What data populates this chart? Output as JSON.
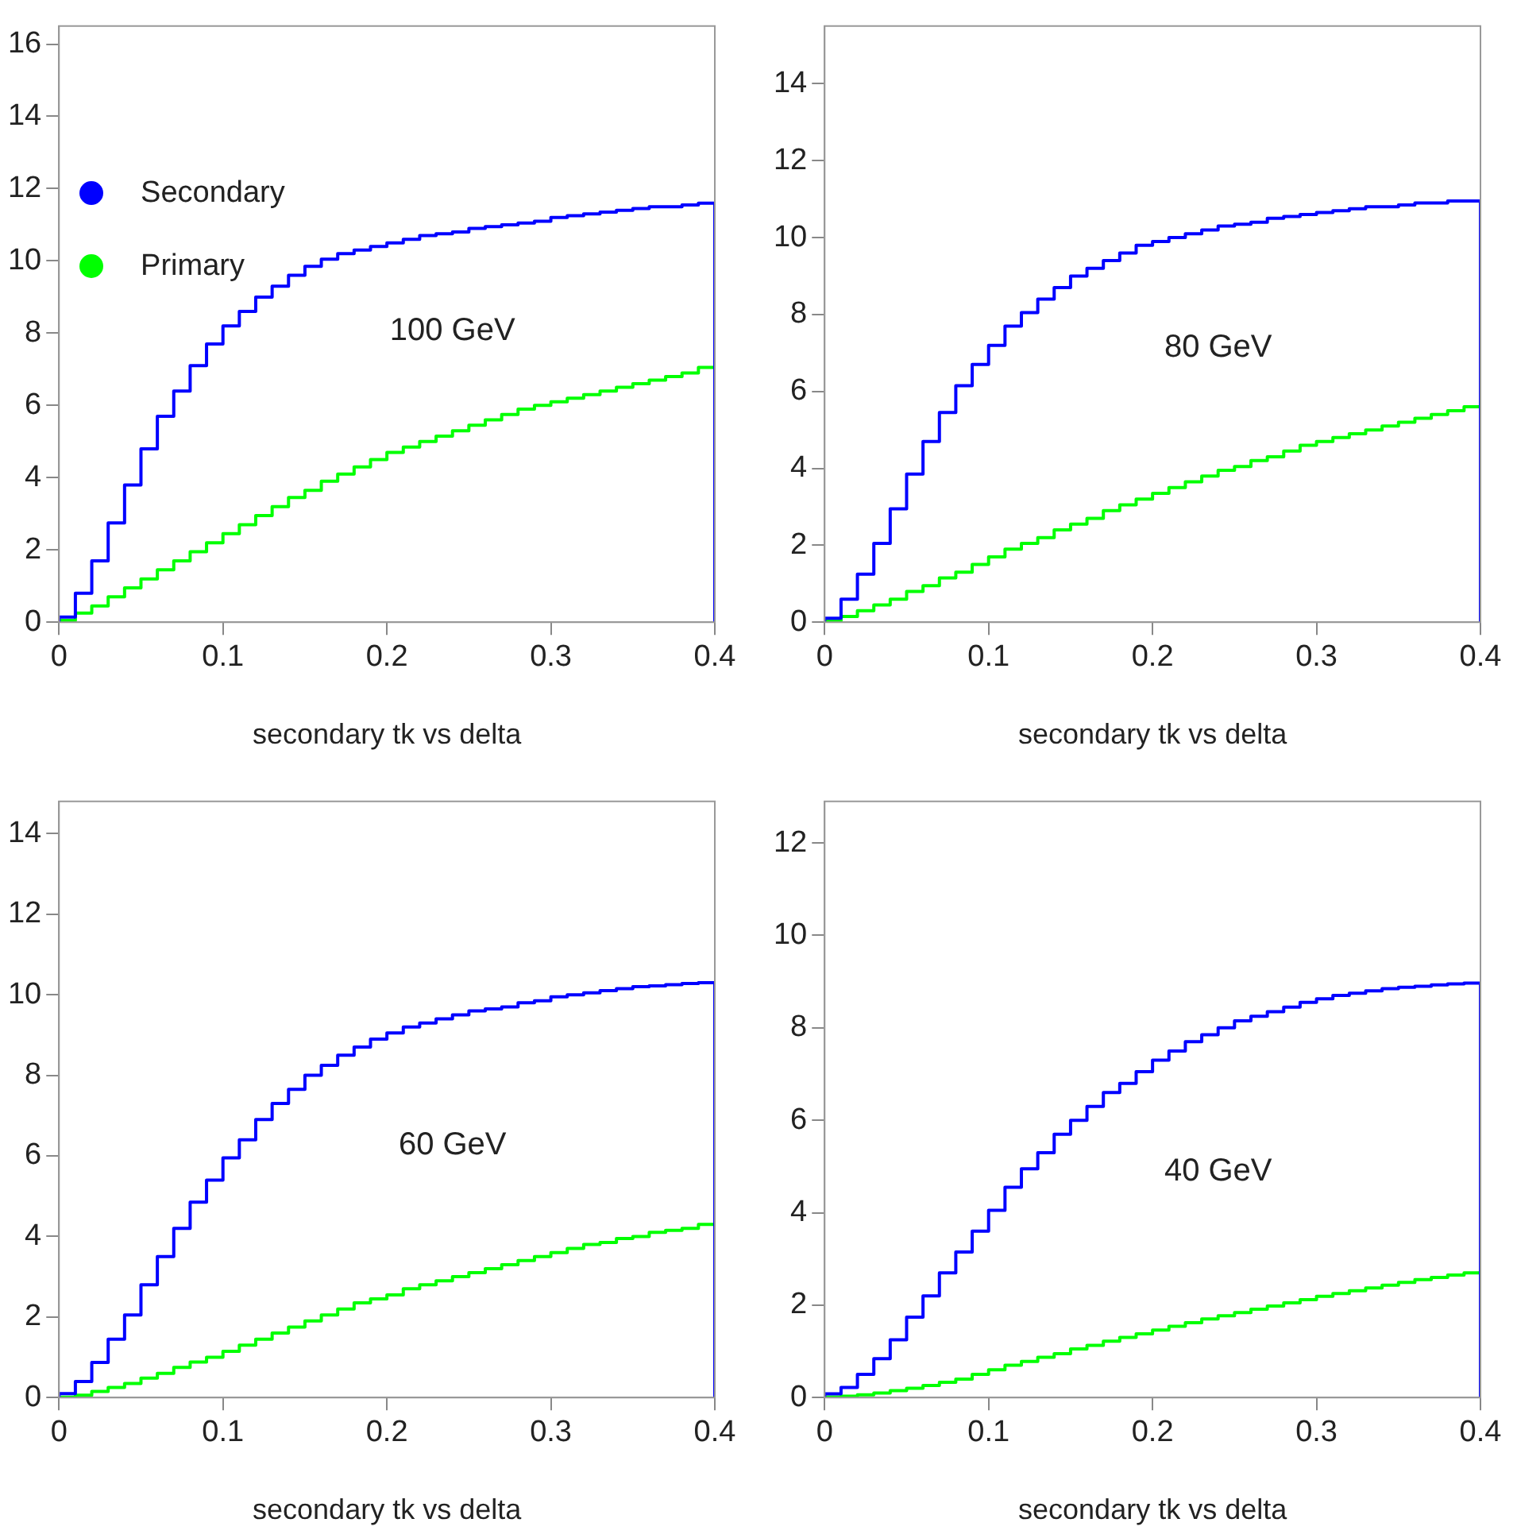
{
  "chart_data": [
    {
      "type": "histogram",
      "xlabel": "secondary tk vs delta",
      "annotations": [
        "100 GeV"
      ],
      "legend": "top left",
      "grid": false,
      "xlim": [
        0,
        0.4
      ],
      "xticks": [
        0,
        0.1,
        0.2,
        0.3,
        0.4
      ],
      "ylim": [
        0,
        16.5
      ],
      "yticks": [
        0,
        2,
        4,
        6,
        8,
        10,
        12,
        14,
        16
      ],
      "bins": [
        0,
        0.01,
        0.02,
        0.03,
        0.04,
        0.05,
        0.06,
        0.07,
        0.08,
        0.09,
        0.1,
        0.11,
        0.12,
        0.13,
        0.14,
        0.15,
        0.16,
        0.17,
        0.18,
        0.19,
        0.2,
        0.21,
        0.22,
        0.23,
        0.24,
        0.25,
        0.26,
        0.27,
        0.28,
        0.29,
        0.3,
        0.31,
        0.32,
        0.33,
        0.34,
        0.35,
        0.36,
        0.37,
        0.38,
        0.39,
        0.4
      ],
      "series": [
        {
          "name": "Secondary",
          "color": "#0000ff",
          "values": [
            0.14,
            0.8,
            1.7,
            2.75,
            3.8,
            4.8,
            5.7,
            6.4,
            7.1,
            7.7,
            8.2,
            8.6,
            9.0,
            9.3,
            9.6,
            9.85,
            10.05,
            10.2,
            10.3,
            10.4,
            10.5,
            10.6,
            10.7,
            10.75,
            10.8,
            10.9,
            10.95,
            11.0,
            11.05,
            11.1,
            11.2,
            11.25,
            11.3,
            11.35,
            11.4,
            11.45,
            11.5,
            11.5,
            11.55,
            11.6
          ]
        },
        {
          "name": "Primary",
          "color": "#00ff00",
          "values": [
            0.05,
            0.25,
            0.45,
            0.7,
            0.95,
            1.2,
            1.45,
            1.7,
            1.95,
            2.2,
            2.45,
            2.7,
            2.95,
            3.2,
            3.45,
            3.65,
            3.9,
            4.1,
            4.3,
            4.5,
            4.7,
            4.85,
            5.0,
            5.15,
            5.3,
            5.45,
            5.6,
            5.75,
            5.9,
            6.0,
            6.1,
            6.2,
            6.3,
            6.4,
            6.5,
            6.6,
            6.7,
            6.8,
            6.9,
            7.05
          ]
        }
      ]
    },
    {
      "type": "histogram",
      "xlabel": "secondary tk vs delta",
      "annotations": [
        "80 GeV"
      ],
      "grid": false,
      "xlim": [
        0,
        0.4
      ],
      "xticks": [
        0,
        0.1,
        0.2,
        0.3,
        0.4
      ],
      "ylim": [
        0,
        15.5
      ],
      "yticks": [
        0,
        2,
        4,
        6,
        8,
        10,
        12,
        14
      ],
      "bins": [
        0,
        0.01,
        0.02,
        0.03,
        0.04,
        0.05,
        0.06,
        0.07,
        0.08,
        0.09,
        0.1,
        0.11,
        0.12,
        0.13,
        0.14,
        0.15,
        0.16,
        0.17,
        0.18,
        0.19,
        0.2,
        0.21,
        0.22,
        0.23,
        0.24,
        0.25,
        0.26,
        0.27,
        0.28,
        0.29,
        0.3,
        0.31,
        0.32,
        0.33,
        0.34,
        0.35,
        0.36,
        0.37,
        0.38,
        0.39,
        0.4
      ],
      "series": [
        {
          "color": "#0000ff",
          "values": [
            0.1,
            0.6,
            1.25,
            2.05,
            2.95,
            3.85,
            4.7,
            5.45,
            6.15,
            6.7,
            7.2,
            7.7,
            8.05,
            8.4,
            8.7,
            9.0,
            9.2,
            9.4,
            9.6,
            9.8,
            9.9,
            10.0,
            10.1,
            10.2,
            10.3,
            10.35,
            10.4,
            10.5,
            10.55,
            10.6,
            10.65,
            10.7,
            10.75,
            10.8,
            10.8,
            10.85,
            10.9,
            10.9,
            10.95,
            10.95
          ]
        },
        {
          "color": "#00ff00",
          "values": [
            0.03,
            0.15,
            0.3,
            0.45,
            0.6,
            0.8,
            0.95,
            1.15,
            1.3,
            1.5,
            1.7,
            1.9,
            2.05,
            2.2,
            2.4,
            2.55,
            2.7,
            2.9,
            3.05,
            3.2,
            3.35,
            3.5,
            3.65,
            3.8,
            3.95,
            4.05,
            4.2,
            4.3,
            4.45,
            4.6,
            4.7,
            4.8,
            4.9,
            5.0,
            5.1,
            5.2,
            5.3,
            5.4,
            5.5,
            5.6
          ]
        }
      ]
    },
    {
      "type": "histogram",
      "xlabel": "secondary tk vs delta",
      "annotations": [
        "60 GeV"
      ],
      "grid": false,
      "xlim": [
        0,
        0.4
      ],
      "xticks": [
        0,
        0.1,
        0.2,
        0.3,
        0.4
      ],
      "ylim": [
        0,
        14.8
      ],
      "yticks": [
        0,
        2,
        4,
        6,
        8,
        10,
        12,
        14
      ],
      "bins": [
        0,
        0.01,
        0.02,
        0.03,
        0.04,
        0.05,
        0.06,
        0.07,
        0.08,
        0.09,
        0.1,
        0.11,
        0.12,
        0.13,
        0.14,
        0.15,
        0.16,
        0.17,
        0.18,
        0.19,
        0.2,
        0.21,
        0.22,
        0.23,
        0.24,
        0.25,
        0.26,
        0.27,
        0.28,
        0.29,
        0.3,
        0.31,
        0.32,
        0.33,
        0.34,
        0.35,
        0.36,
        0.37,
        0.38,
        0.39,
        0.4
      ],
      "series": [
        {
          "color": "#0000ff",
          "values": [
            0.1,
            0.4,
            0.87,
            1.45,
            2.05,
            2.8,
            3.5,
            4.2,
            4.85,
            5.4,
            5.95,
            6.4,
            6.9,
            7.3,
            7.65,
            8.0,
            8.25,
            8.5,
            8.7,
            8.9,
            9.05,
            9.2,
            9.3,
            9.4,
            9.5,
            9.6,
            9.65,
            9.7,
            9.8,
            9.85,
            9.95,
            10.0,
            10.05,
            10.1,
            10.15,
            10.2,
            10.22,
            10.25,
            10.28,
            10.3
          ]
        },
        {
          "color": "#00ff00",
          "values": [
            0.01,
            0.06,
            0.15,
            0.25,
            0.35,
            0.48,
            0.6,
            0.75,
            0.88,
            1.0,
            1.15,
            1.3,
            1.45,
            1.6,
            1.75,
            1.9,
            2.05,
            2.2,
            2.35,
            2.45,
            2.55,
            2.7,
            2.8,
            2.9,
            3.0,
            3.1,
            3.2,
            3.3,
            3.4,
            3.5,
            3.6,
            3.7,
            3.8,
            3.85,
            3.95,
            4.0,
            4.1,
            4.15,
            4.2,
            4.3
          ]
        }
      ]
    },
    {
      "type": "histogram",
      "xlabel": "secondary tk vs delta",
      "annotations": [
        "40 GeV"
      ],
      "grid": false,
      "xlim": [
        0,
        0.4
      ],
      "xticks": [
        0,
        0.1,
        0.2,
        0.3,
        0.4
      ],
      "ylim": [
        0,
        12.9
      ],
      "yticks": [
        0,
        2,
        4,
        6,
        8,
        10,
        12
      ],
      "bins": [
        0,
        0.01,
        0.02,
        0.03,
        0.04,
        0.05,
        0.06,
        0.07,
        0.08,
        0.09,
        0.1,
        0.11,
        0.12,
        0.13,
        0.14,
        0.15,
        0.16,
        0.17,
        0.18,
        0.19,
        0.2,
        0.21,
        0.22,
        0.23,
        0.24,
        0.25,
        0.26,
        0.27,
        0.28,
        0.29,
        0.3,
        0.31,
        0.32,
        0.33,
        0.34,
        0.35,
        0.36,
        0.37,
        0.38,
        0.39,
        0.4
      ],
      "series": [
        {
          "color": "#0000ff",
          "values": [
            0.08,
            0.22,
            0.5,
            0.84,
            1.25,
            1.74,
            2.2,
            2.7,
            3.15,
            3.6,
            4.05,
            4.55,
            4.95,
            5.3,
            5.7,
            6.0,
            6.3,
            6.6,
            6.8,
            7.05,
            7.3,
            7.5,
            7.7,
            7.85,
            8.0,
            8.15,
            8.25,
            8.35,
            8.45,
            8.55,
            8.63,
            8.7,
            8.75,
            8.8,
            8.85,
            8.88,
            8.9,
            8.93,
            8.95,
            8.97
          ]
        },
        {
          "color": "#00ff00",
          "values": [
            0.01,
            0.03,
            0.06,
            0.1,
            0.15,
            0.2,
            0.26,
            0.33,
            0.4,
            0.5,
            0.6,
            0.7,
            0.78,
            0.87,
            0.95,
            1.05,
            1.13,
            1.22,
            1.3,
            1.38,
            1.46,
            1.54,
            1.62,
            1.7,
            1.77,
            1.84,
            1.91,
            1.98,
            2.05,
            2.12,
            2.19,
            2.25,
            2.31,
            2.37,
            2.43,
            2.49,
            2.55,
            2.6,
            2.65,
            2.7
          ]
        }
      ]
    }
  ]
}
